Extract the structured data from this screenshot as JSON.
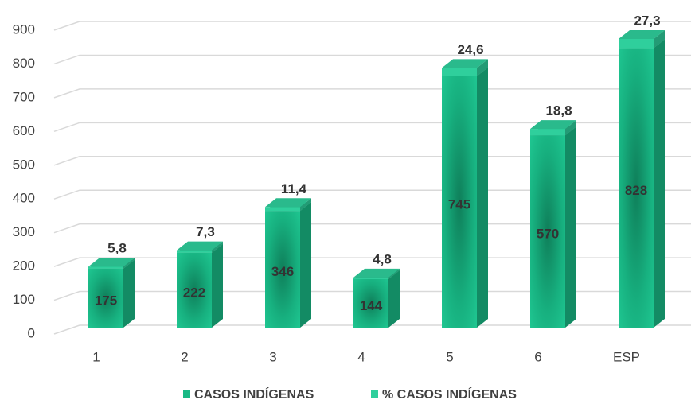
{
  "chart_data": {
    "type": "bar3d",
    "categories": [
      "1",
      "2",
      "3",
      "4",
      "5",
      "6",
      "ESP"
    ],
    "series": [
      {
        "name": "CASOS INDÍGENAS",
        "color": "#19b985",
        "values": [
          175,
          222,
          346,
          144,
          745,
          570,
          828
        ]
      },
      {
        "name": "% CASOS INDÍGENAS",
        "color": "#2fcf9c",
        "values": [
          5.8,
          7.3,
          11.4,
          4.8,
          24.6,
          18.8,
          27.3
        ],
        "value_labels": [
          "5,8",
          "7,3",
          "11,4",
          "4,8",
          "24,6",
          "18,8",
          "27,3"
        ]
      }
    ],
    "stacked": true,
    "ylim": [
      0,
      900
    ],
    "yticks": [
      0,
      100,
      200,
      300,
      400,
      500,
      600,
      700,
      800,
      900
    ],
    "grid": true,
    "legend": "bottom"
  }
}
